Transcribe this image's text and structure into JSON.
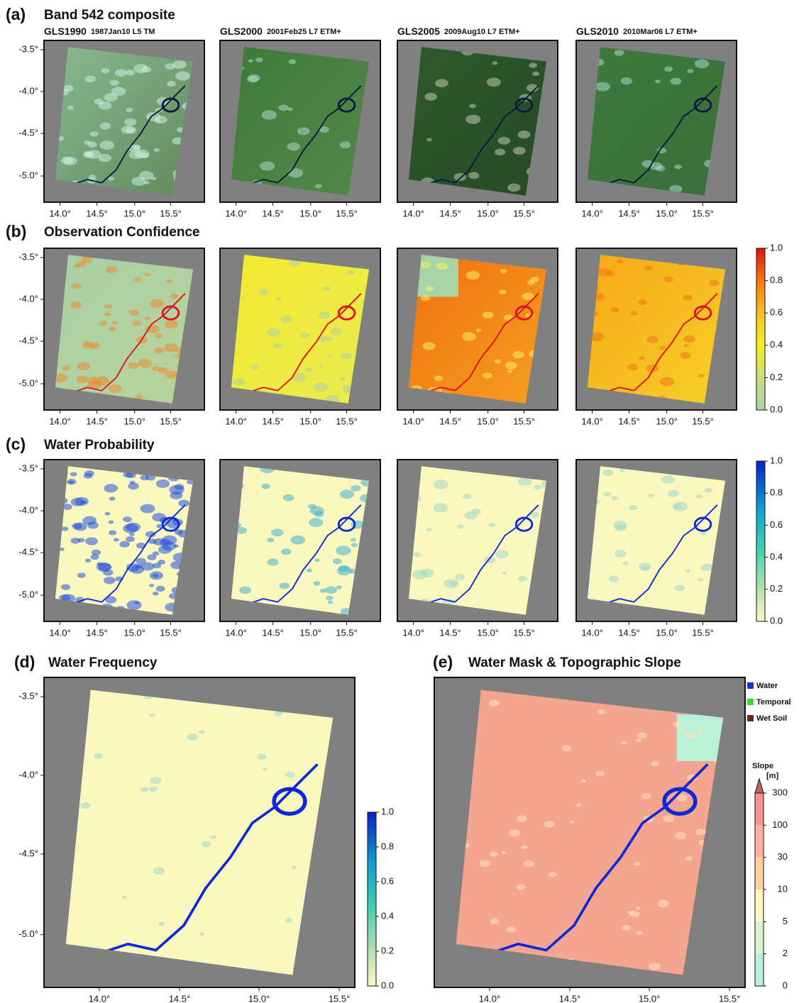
{
  "panels": [
    {
      "label": "(a)",
      "title": "Band 542 composite",
      "maps": [
        {
          "name": "GLS1990",
          "scene": "1987Jan10 L5 TM"
        },
        {
          "name": "GLS2000",
          "scene": "2001Feb25 L7 ETM+"
        },
        {
          "name": "GLS2005",
          "scene": "2009Aug10 L7 ETM+"
        },
        {
          "name": "GLS2010",
          "scene": "2010Mar06 L7 ETM+"
        }
      ]
    },
    {
      "label": "(b)",
      "title": "Observation Confidence",
      "colorbar": [
        "1.0",
        "0.8",
        "0.6",
        "0.4",
        "0.2",
        "0.0"
      ]
    },
    {
      "label": "(c)",
      "title": "Water Probability",
      "colorbar": [
        "1.0",
        "0.8",
        "0.6",
        "0.4",
        "0.2",
        "0.0"
      ]
    },
    {
      "label": "(d)",
      "title": "Water Frequency",
      "colorbar": [
        "1.0",
        "0.8",
        "0.6",
        "0.4",
        "0.2",
        "0.0"
      ]
    },
    {
      "label": "(e)",
      "title": "Water Mask & Topographic Slope",
      "legend": [
        {
          "label": "Water",
          "color": "#1030e0"
        },
        {
          "label": "Temporal",
          "color": "#30e030"
        },
        {
          "label": "Wet Soil",
          "color": "#7a2020"
        }
      ],
      "colorbar_title": "Slope",
      "colorbar_unit": "[m]",
      "colorbar": [
        "300",
        "100",
        "30",
        "10",
        "5",
        "2",
        "0"
      ]
    }
  ],
  "lat_ticks": [
    "-3.5°",
    "-4.0°",
    "-4.5°",
    "-5.0°"
  ],
  "lon_ticks": [
    "14.0°",
    "14.5°",
    "15.0°",
    "15.5°"
  ]
}
